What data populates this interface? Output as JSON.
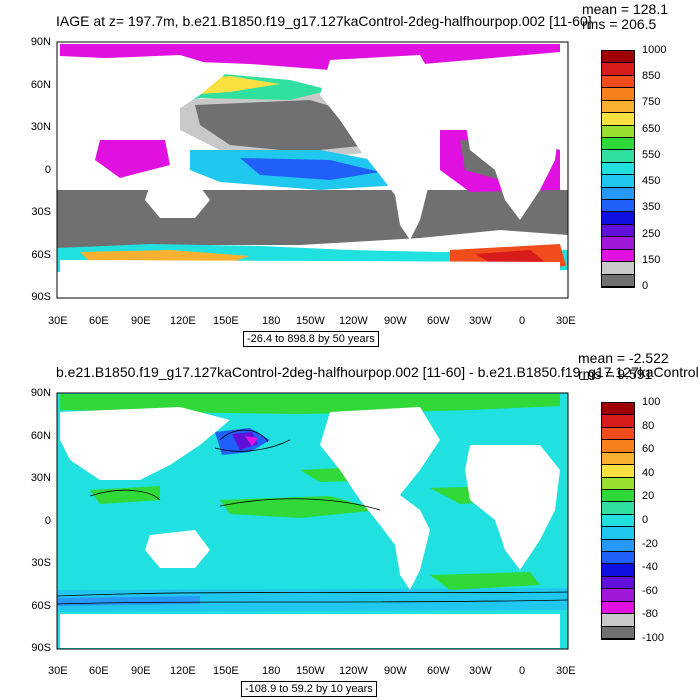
{
  "panels": [
    {
      "title": "IAGE at z= 197.7m, b.e21.B1850.f19_g17.127kaControl-2deg-halfhourpop.002 [11-60]",
      "mean": "mean = 128.1",
      "rms": "rms = 206.5",
      "range_note": "-26.4 to 898.8 by 50 years",
      "colorbar": {
        "labels": [
          "1000",
          "850",
          "750",
          "650",
          "550",
          "450",
          "350",
          "250",
          "150",
          "0"
        ],
        "colors": [
          "#a00000",
          "#d81c1c",
          "#f04c1c",
          "#f8801c",
          "#f8b030",
          "#f8e040",
          "#98e030",
          "#30d838",
          "#30e0a0",
          "#20e0e0",
          "#20c8f0",
          "#2898f8",
          "#2060f8",
          "#1010e0",
          "#6010d8",
          "#a018d8",
          "#e010e0",
          "#c8c8c8",
          "#707070"
        ]
      }
    },
    {
      "title": "b.e21.B1850.f19_g17.127kaControl-2deg-halfhourpop.002 [11-60] - b.e21.B1850.f19_g17.127kaControl",
      "mean": "mean = -2.522",
      "rms": "rms = 9.591",
      "range_note": "-108.9 to 59.2 by 10 years",
      "colorbar": {
        "labels": [
          "100",
          "80",
          "60",
          "40",
          "20",
          "0",
          "-20",
          "-40",
          "-60",
          "-80",
          "-100"
        ],
        "colors": [
          "#a00000",
          "#d81c1c",
          "#f04c1c",
          "#f8801c",
          "#f8b030",
          "#f8e040",
          "#98e030",
          "#30d838",
          "#30e0a0",
          "#20e0e0",
          "#20c8f0",
          "#2898f8",
          "#2060f8",
          "#1010e0",
          "#6010d8",
          "#a018d8",
          "#e010e0",
          "#c8c8c8",
          "#707070"
        ]
      }
    }
  ],
  "axes": {
    "x_ticks": [
      "30E",
      "60E",
      "90E",
      "120E",
      "150E",
      "180",
      "150W",
      "120W",
      "90W",
      "60W",
      "30W",
      "0",
      "30E"
    ],
    "y_ticks": [
      "90N",
      "60N",
      "30N",
      "0",
      "30S",
      "60S",
      "90S"
    ]
  },
  "chart_data": [
    {
      "type": "heatmap",
      "title": "IAGE at z= 197.7m, b.e21.B1850.f19_g17.127kaControl-2deg-halfhourpop.002 [11-60]",
      "x_range": [
        "30E",
        "30E"
      ],
      "y_range": [
        "90S",
        "90N"
      ],
      "colorbar_levels": [
        0,
        150,
        250,
        350,
        450,
        550,
        650,
        750,
        850,
        1000
      ],
      "mean": 128.1,
      "rms": 206.5
    },
    {
      "type": "heatmap",
      "title": "b.e21.B1850.f19_g17.127kaControl-2deg-halfhourpop.002 [11-60] - b.e21.B1850.f19_g17.127kaControl",
      "x_range": [
        "30E",
        "30E"
      ],
      "y_range": [
        "90S",
        "90N"
      ],
      "colorbar_levels": [
        -100,
        -80,
        -60,
        -40,
        -20,
        0,
        20,
        40,
        60,
        80,
        100
      ],
      "mean": -2.522,
      "rms": 9.591
    }
  ]
}
